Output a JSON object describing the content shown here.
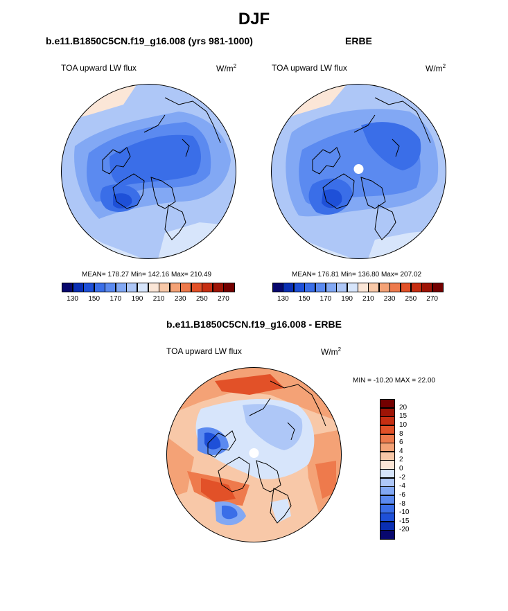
{
  "main_title": "DJF",
  "panels": [
    {
      "title": "b.e11.B1850C5CN.f19_g16.008 (yrs 981-1000)",
      "variable": "TOA upward LW flux",
      "units": "W/m",
      "units_sup": "2",
      "stats": "MEAN= 178.27  Min= 142.16  Max= 210.49"
    },
    {
      "title": "ERBE",
      "variable": "TOA upward LW flux",
      "units": "W/m",
      "units_sup": "2",
      "stats": "MEAN= 176.81  Min= 136.80  Max= 207.02"
    }
  ],
  "difference": {
    "title": "b.e11.B1850C5CN.f19_g16.008 - ERBE",
    "variable": "TOA upward LW flux",
    "units": "W/m",
    "units_sup": "2",
    "stats": "MIN = -10.20 MAX =  22.00"
  },
  "chart_data": [
    {
      "type": "heatmap",
      "projection": "north polar stereographic",
      "title": "b.e11.B1850C5CN.f19_g16.008 (yrs 981-1000)",
      "variable": "TOA upward LW flux",
      "units": "W/m2",
      "mean": 178.27,
      "min": 142.16,
      "max": 210.49,
      "colorbar": {
        "levels": [
          130,
          140,
          150,
          160,
          170,
          180,
          190,
          200,
          210,
          220,
          230,
          240,
          250,
          260,
          270
        ],
        "tick_labels": [
          "130",
          "150",
          "170",
          "190",
          "210",
          "230",
          "250",
          "270"
        ],
        "colors": [
          "#08086e",
          "#0a2fb4",
          "#1e50d8",
          "#3a6ee8",
          "#5b8af0",
          "#82a8f4",
          "#aec7f7",
          "#d7e5fb",
          "#fbe6d7",
          "#f8c8a8",
          "#f4a276",
          "#ee7a4c",
          "#e25128",
          "#c62e12",
          "#9e1406",
          "#730000"
        ]
      }
    },
    {
      "type": "heatmap",
      "projection": "north polar stereographic",
      "title": "ERBE",
      "variable": "TOA upward LW flux",
      "units": "W/m2",
      "mean": 176.81,
      "min": 136.8,
      "max": 207.02,
      "colorbar": {
        "levels": [
          130,
          140,
          150,
          160,
          170,
          180,
          190,
          200,
          210,
          220,
          230,
          240,
          250,
          260,
          270
        ],
        "tick_labels": [
          "130",
          "150",
          "170",
          "190",
          "210",
          "230",
          "250",
          "270"
        ],
        "colors": [
          "#08086e",
          "#0a2fb4",
          "#1e50d8",
          "#3a6ee8",
          "#5b8af0",
          "#82a8f4",
          "#aec7f7",
          "#d7e5fb",
          "#fbe6d7",
          "#f8c8a8",
          "#f4a276",
          "#ee7a4c",
          "#e25128",
          "#c62e12",
          "#9e1406",
          "#730000"
        ]
      }
    },
    {
      "type": "heatmap",
      "projection": "north polar stereographic",
      "title": "b.e11.B1850C5CN.f19_g16.008 - ERBE",
      "variable": "TOA upward LW flux",
      "units": "W/m2",
      "min": -10.2,
      "max": 22.0,
      "colorbar": {
        "orientation": "vertical",
        "levels": [
          -20,
          -15,
          -10,
          -8,
          -6,
          -4,
          -2,
          0,
          2,
          4,
          6,
          8,
          10,
          15,
          20
        ],
        "tick_labels": [
          "-20",
          "-15",
          "-10",
          "-8",
          "-6",
          "-4",
          "-2",
          "0",
          "2",
          "4",
          "6",
          "8",
          "10",
          "15",
          "20"
        ],
        "colors": [
          "#08086e",
          "#0a2fb4",
          "#1e50d8",
          "#3a6ee8",
          "#5b8af0",
          "#82a8f4",
          "#aec7f7",
          "#d7e5fb",
          "#fbe6d7",
          "#f8c8a8",
          "#f4a276",
          "#ee7a4c",
          "#e25128",
          "#c62e12",
          "#9e1406",
          "#730000"
        ]
      }
    }
  ]
}
